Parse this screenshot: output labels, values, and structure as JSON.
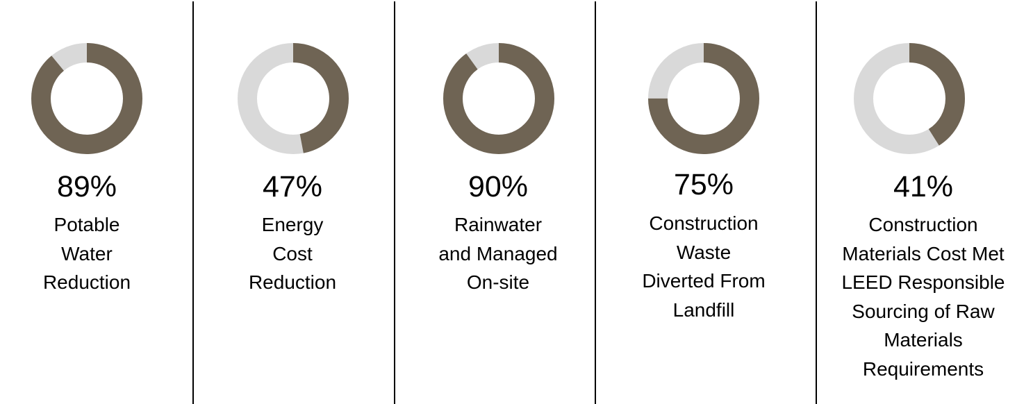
{
  "chart_data": {
    "type": "pie",
    "style": "donut",
    "colors": {
      "filled": "#6f6454",
      "remainder": "#d9d9d9"
    },
    "stats": [
      {
        "value": 89,
        "value_text": "89%",
        "label_lines": [
          "Potable",
          "Water",
          "Reduction"
        ]
      },
      {
        "value": 47,
        "value_text": "47%",
        "label_lines": [
          "Energy",
          "Cost",
          "Reduction"
        ]
      },
      {
        "value": 90,
        "value_text": "90%",
        "label_lines": [
          "Rainwater",
          "and Managed",
          "On-site"
        ]
      },
      {
        "value": 75,
        "value_text": "75%",
        "label_lines": [
          "Construction",
          "Waste",
          "Diverted From",
          "Landfill"
        ]
      },
      {
        "value": 41,
        "value_text": "41%",
        "label_lines": [
          "Construction",
          "Materials Cost Met",
          "LEED Responsible",
          "Sourcing of Raw",
          "Materials",
          "Requirements"
        ]
      }
    ]
  }
}
